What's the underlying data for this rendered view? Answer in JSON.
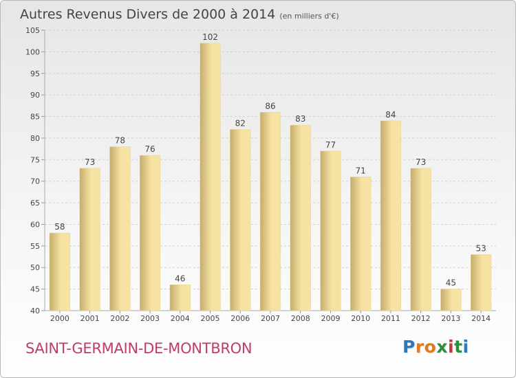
{
  "chart_data": {
    "type": "bar",
    "title": "Autres Revenus Divers de 2000 à 2014",
    "subtitle": "(en milliers d'€)",
    "categories": [
      "2000",
      "2001",
      "2002",
      "2003",
      "2004",
      "2005",
      "2006",
      "2007",
      "2008",
      "2009",
      "2010",
      "2011",
      "2012",
      "2013",
      "2014"
    ],
    "values": [
      58,
      73,
      78,
      76,
      46,
      102,
      82,
      86,
      83,
      77,
      71,
      84,
      73,
      45,
      53
    ],
    "ylim": [
      40,
      105
    ],
    "yticks": [
      40,
      45,
      50,
      55,
      60,
      65,
      70,
      75,
      80,
      85,
      90,
      95,
      100,
      105
    ],
    "grid": true,
    "xlabel": "",
    "ylabel": ""
  },
  "location": "SAINT-GERMAIN-DE-MONTBRON",
  "logo": {
    "letters": [
      "P",
      "r",
      "o",
      "x",
      "i",
      "t",
      "i"
    ],
    "colors": [
      "#2b7bc4",
      "#e07b1f",
      "#e07b1f",
      "#2a8f3e",
      "#c23b3b",
      "#2a8f3e",
      "#2b7bc4"
    ]
  },
  "colors": {
    "bar_light": "#f6e2a2",
    "bar_dark": "#c5ad6c",
    "grid": "#cfcfcf",
    "label": "#444444"
  }
}
